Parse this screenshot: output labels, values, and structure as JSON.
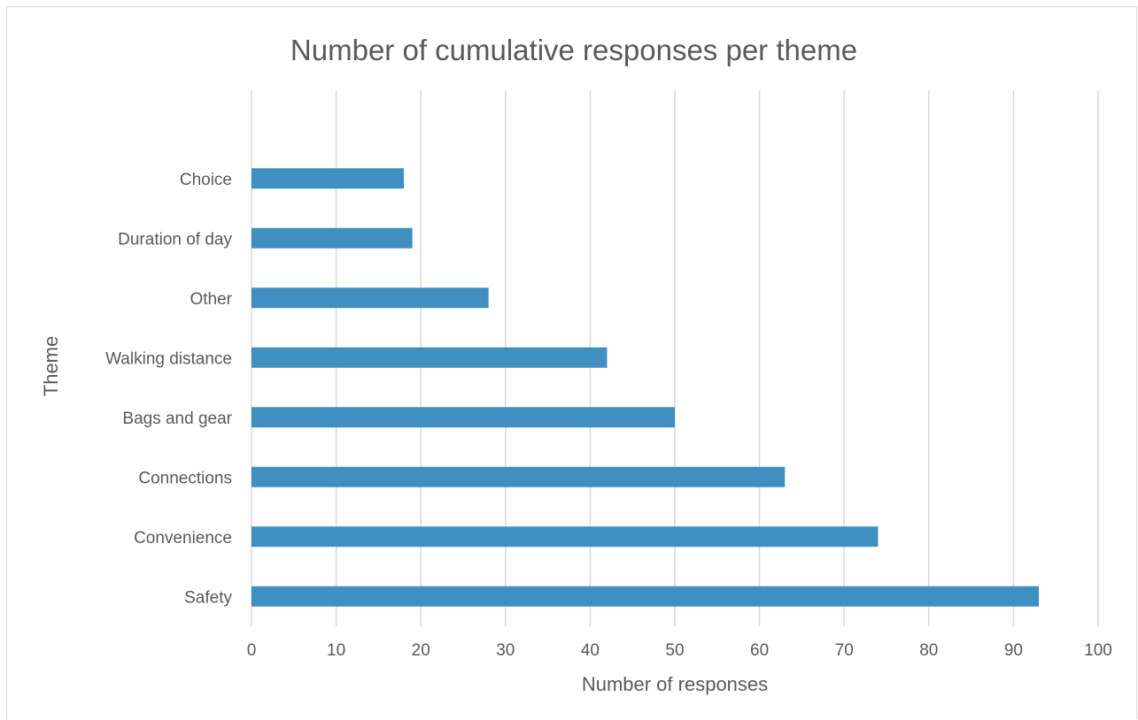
{
  "chart_data": {
    "type": "bar",
    "orientation": "horizontal",
    "title": "Number of cumulative responses per theme",
    "xlabel": "Number of responses",
    "ylabel": "Theme",
    "categories": [
      "Safety",
      "Convenience",
      "Connections",
      "Bags and gear",
      "Walking distance",
      "Other",
      "Duration of day",
      "Choice"
    ],
    "values": [
      93,
      74,
      63,
      50,
      42,
      28,
      19,
      18
    ],
    "xlim": [
      0,
      100
    ],
    "xticks": [
      0,
      10,
      20,
      30,
      40,
      50,
      60,
      70,
      80,
      90,
      100
    ],
    "grid": true,
    "legend": "none",
    "bar_color": "#3f8fc0"
  }
}
